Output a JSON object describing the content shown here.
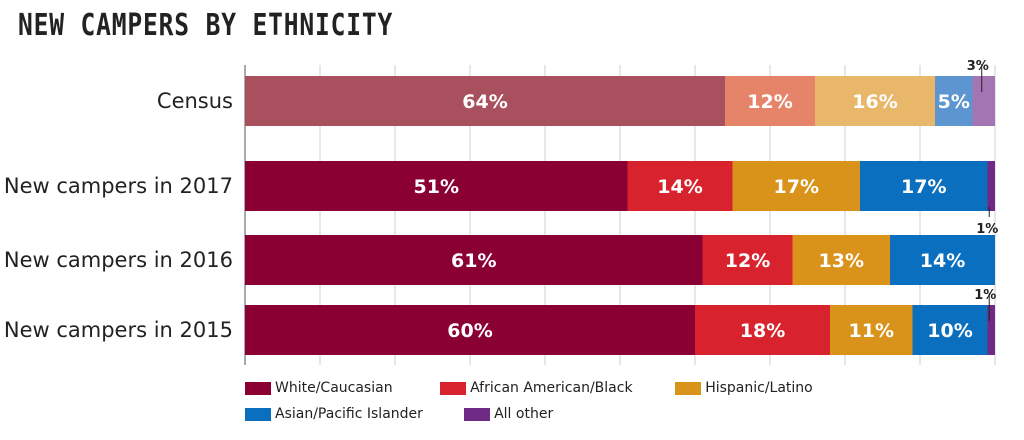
{
  "chart_data": {
    "type": "bar",
    "orientation": "horizontal",
    "stacked": true,
    "title": "NEW CAMPERS BY ETHNICITY",
    "categories": [
      "Census",
      "New campers in 2017",
      "New campers in 2016",
      "New campers in 2015"
    ],
    "series": [
      {
        "name": "White/Caucasian",
        "color": "#8b0033",
        "census_color": "#a9505f",
        "values": [
          64,
          51,
          61,
          60
        ],
        "labels": [
          "64%",
          "51%",
          "61%",
          "60%"
        ]
      },
      {
        "name": "African American/Black",
        "color": "#d8232f",
        "census_color": "#e58468",
        "values": [
          12,
          14,
          12,
          18
        ],
        "labels": [
          "12%",
          "14%",
          "12%",
          "18%"
        ]
      },
      {
        "name": "Hispanic/Latino",
        "color": "#d9921a",
        "census_color": "#e8b76a",
        "values": [
          16,
          17,
          13,
          11
        ],
        "labels": [
          "16%",
          "17%",
          "13%",
          "11%"
        ]
      },
      {
        "name": "Asian/Pacific Islander",
        "color": "#0a6fbe",
        "census_color": "#5c95d0",
        "values": [
          5,
          17,
          14,
          10
        ],
        "labels": [
          "5%",
          "17%",
          "14%",
          "10%"
        ]
      },
      {
        "name": "All other",
        "color": "#6e2a84",
        "census_color": "#a376b3",
        "values": [
          3,
          1,
          0,
          1
        ],
        "labels": [
          "3%",
          "1%",
          "",
          "1%"
        ]
      }
    ],
    "xlim": [
      0,
      100
    ],
    "grid": true,
    "legend_position": "bottom"
  }
}
